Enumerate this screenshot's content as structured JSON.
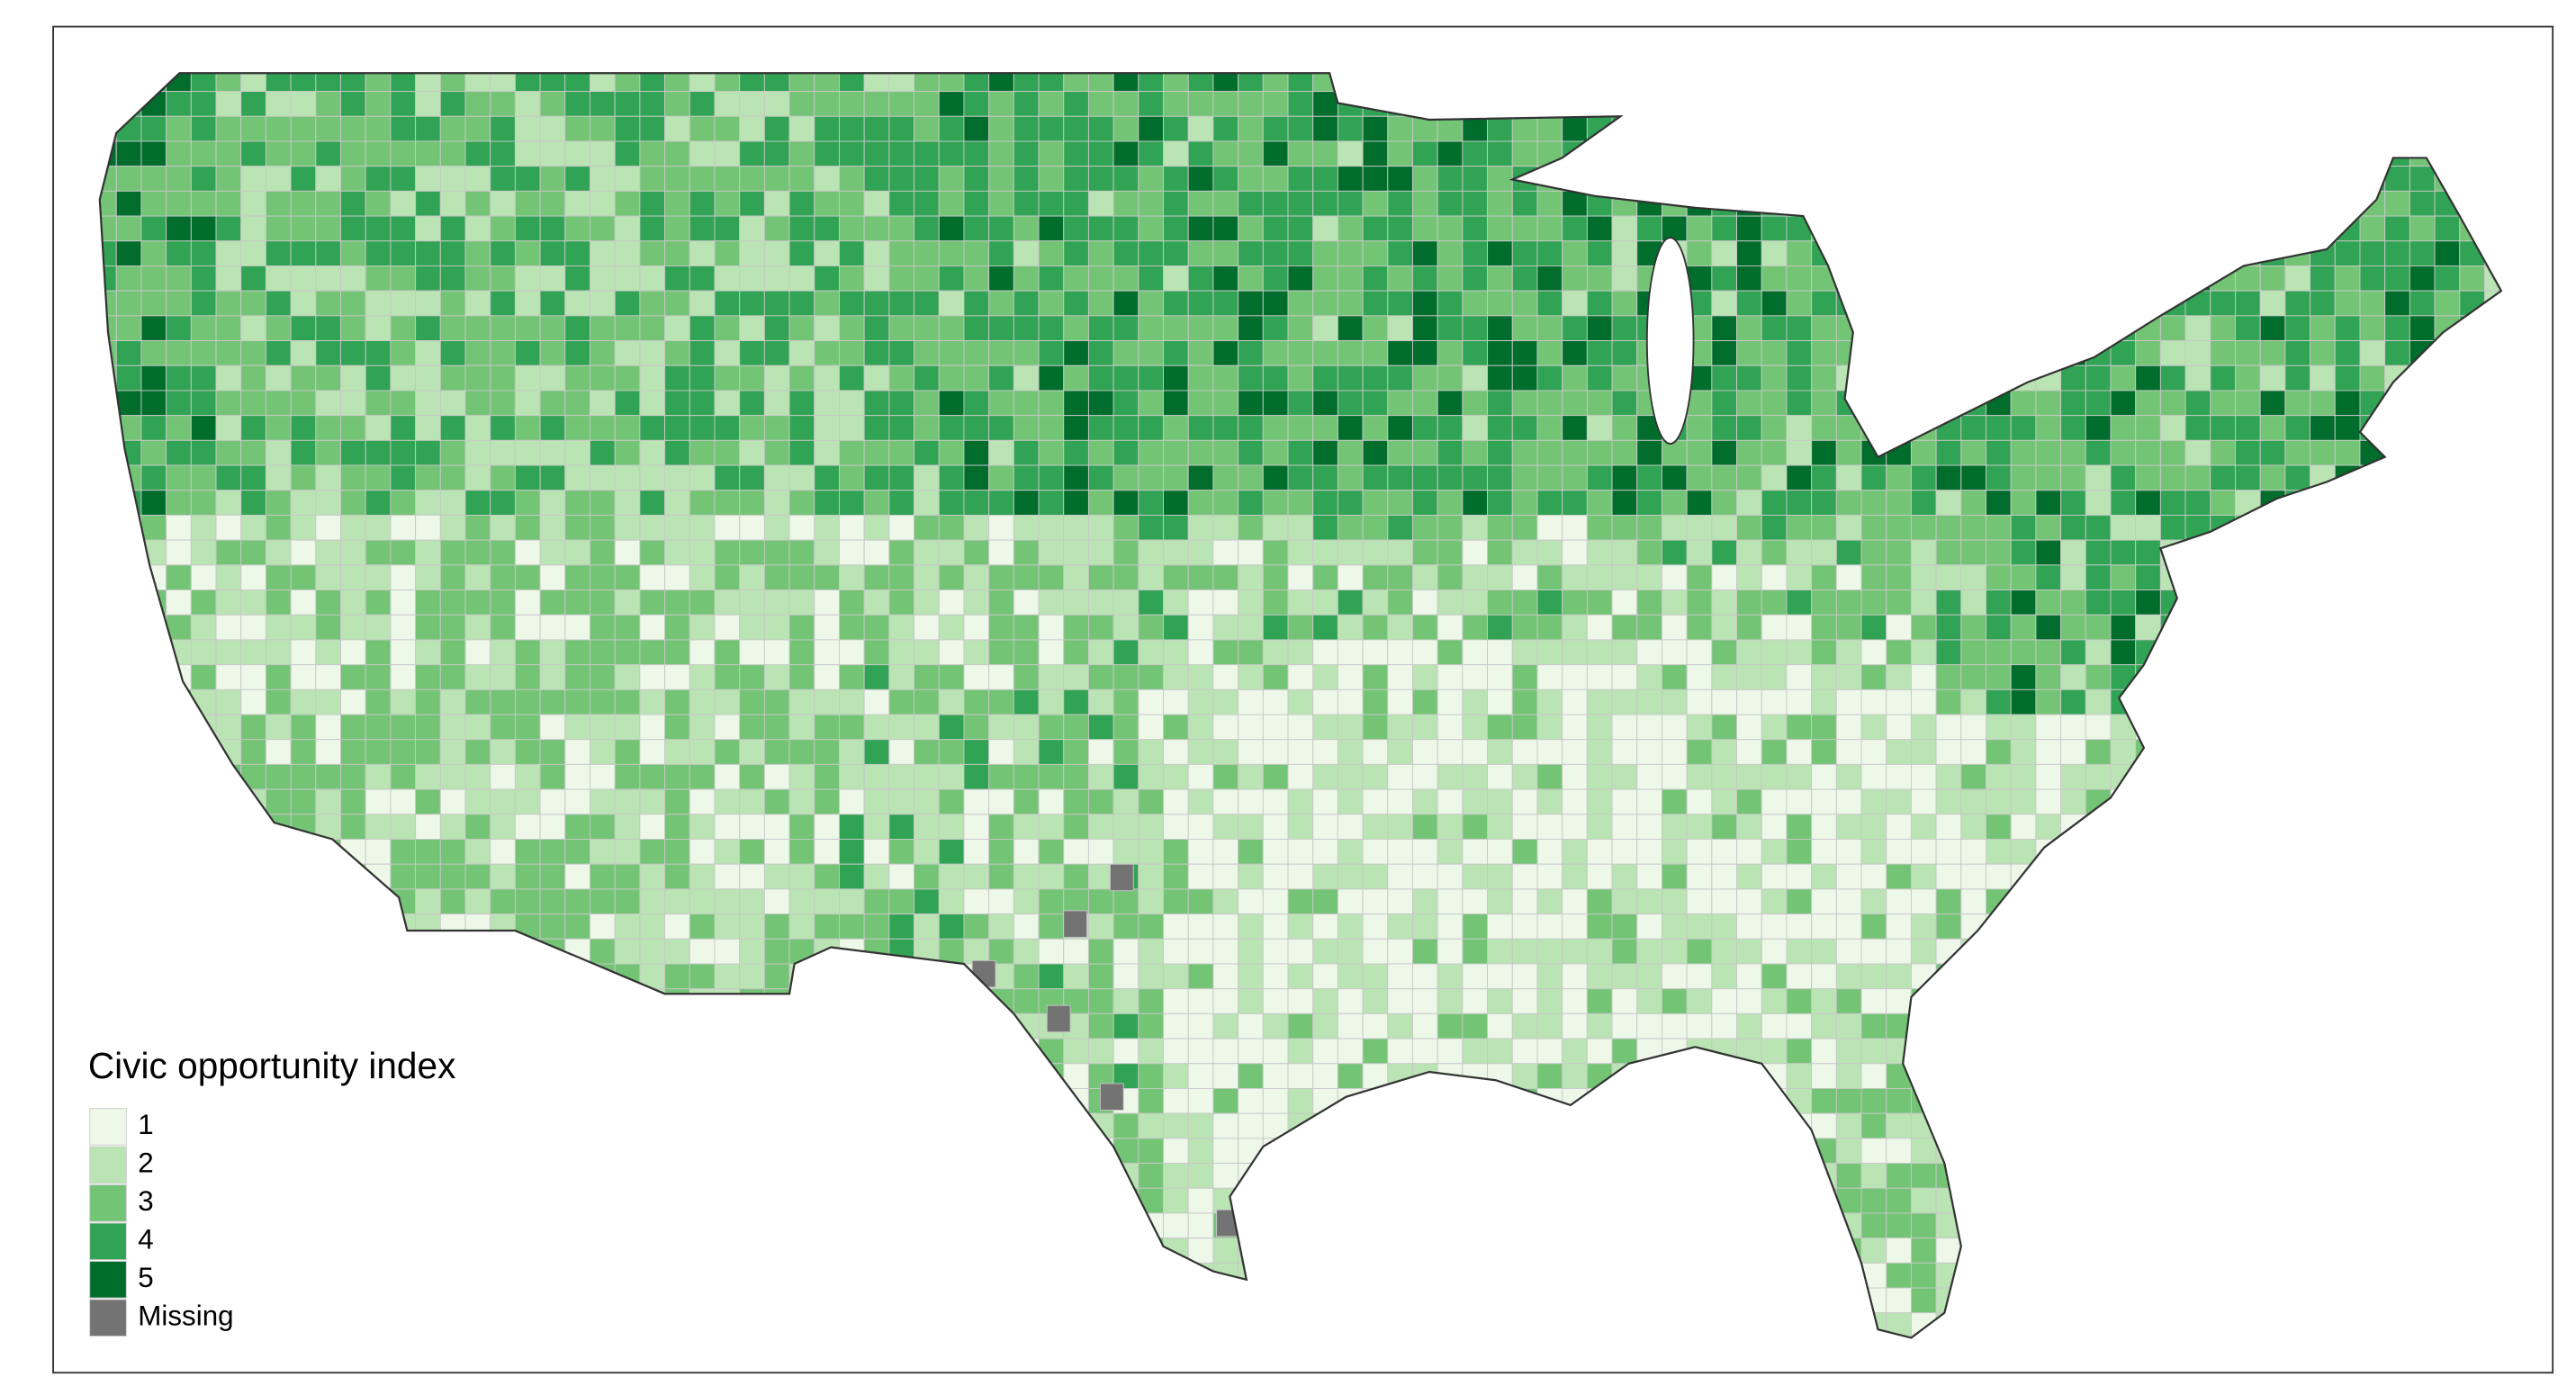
{
  "legend": {
    "title": "Civic opportunity index",
    "items": [
      {
        "label": "1",
        "color": "#edf8e9"
      },
      {
        "label": "2",
        "color": "#bae4b3"
      },
      {
        "label": "3",
        "color": "#74c476"
      },
      {
        "label": "4",
        "color": "#31a354"
      },
      {
        "label": "5",
        "color": "#006d2c"
      },
      {
        "label": "Missing",
        "color": "#737373"
      }
    ]
  }
}
